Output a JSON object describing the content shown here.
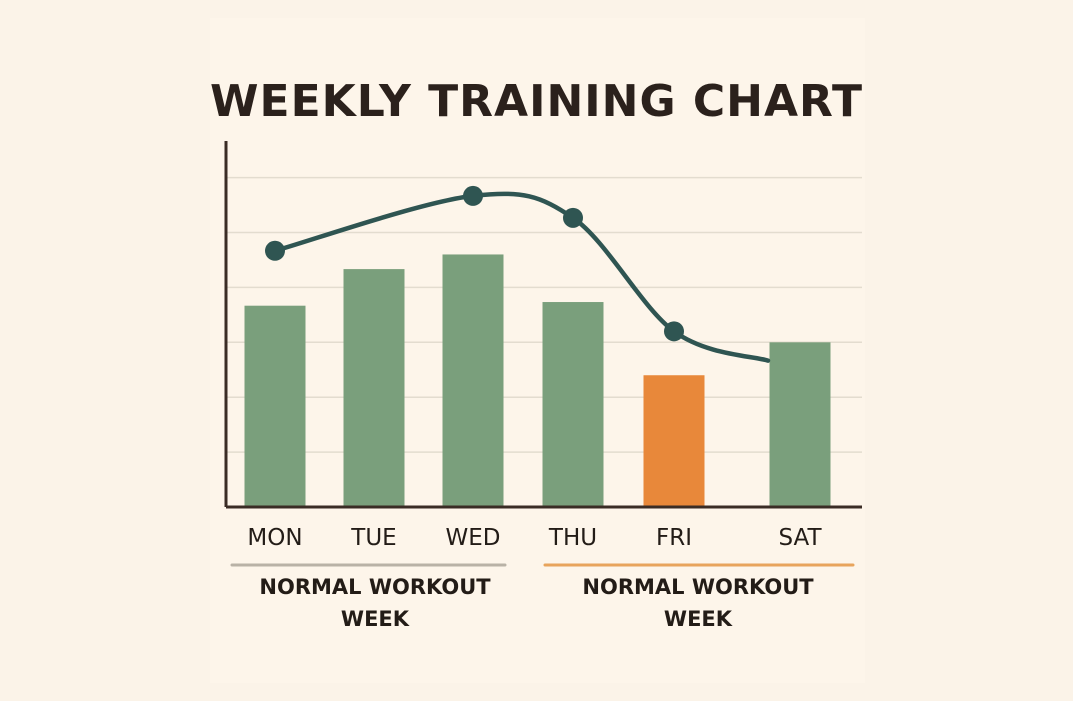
{
  "chart_data": {
    "type": "bar",
    "title": "WEEKLY TRAINING CHART",
    "xlabel": "",
    "ylabel": "",
    "categories": [
      "MON",
      "TUE",
      "WED",
      "THU",
      "FRI",
      "SAT"
    ],
    "series": [
      {
        "values": [
          5.5,
          6.5,
          6.9,
          5.6,
          3.6,
          4.5
        ]
      },
      {
        "values": [
          7.0,
          null,
          8.5,
          7.9,
          4.8,
          null
        ]
      }
    ],
    "line_points": [
      {
        "x": "MON",
        "y": 7.0
      },
      {
        "x": "WED",
        "y": 8.5
      },
      {
        "x": "THU",
        "y": 7.9
      },
      {
        "x": "FRI",
        "y": 4.8
      }
    ],
    "highlight_category": "FRI",
    "ylim": [
      0,
      10
    ],
    "grid": true,
    "groups": [
      {
        "label_line1": "NORMAL WORKOUT",
        "label_line2": "WEEK",
        "categories": [
          "MON",
          "TUE",
          "WED"
        ],
        "color": "#b9b2a6"
      },
      {
        "label_line1": "NORMAL WORKOUT",
        "label_line2": "WEEK",
        "categories": [
          "THU",
          "FRI",
          "SAT"
        ],
        "color": "#e8a45c"
      }
    ],
    "colors": {
      "bar": "#7a9f7c",
      "highlight": "#e8883a",
      "line": "#2f5552",
      "axis": "#3a2c25",
      "grid": "#e3dccf"
    }
  }
}
